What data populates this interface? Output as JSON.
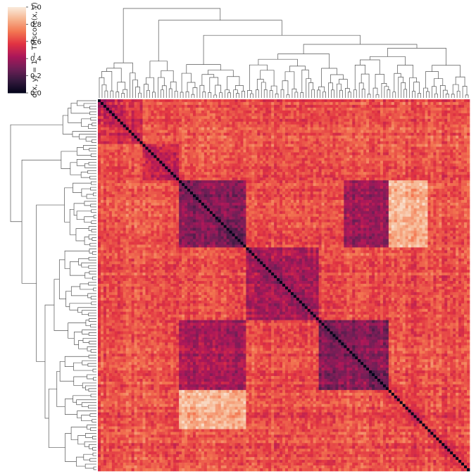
{
  "chart_data": {
    "type": "heatmap",
    "title": "",
    "layout": "clustermap with row and column dendrograms",
    "matrix_size": 133,
    "diagonal_value": 0.0,
    "value_range": [
      0.0,
      1.0
    ],
    "colormap": "rocket",
    "colormap_stops": [
      "#03051a",
      "#35193e",
      "#701f57",
      "#ad1759",
      "#e13342",
      "#f37651",
      "#f6b48f",
      "#faebdd"
    ],
    "blocks": [
      {
        "rows": [
          0,
          16
        ],
        "cols": [
          0,
          16
        ],
        "value": 0.55
      },
      {
        "rows": [
          16,
          29
        ],
        "cols": [
          16,
          29
        ],
        "value": 0.52
      },
      {
        "rows": [
          29,
          53
        ],
        "cols": [
          29,
          53
        ],
        "value": 0.34
      },
      {
        "rows": [
          53,
          79
        ],
        "cols": [
          53,
          79
        ],
        "value": 0.45
      },
      {
        "rows": [
          79,
          104
        ],
        "cols": [
          79,
          104
        ],
        "value": 0.35
      },
      {
        "rows": [
          104,
          133
        ],
        "cols": [
          104,
          133
        ],
        "value": 0.62
      }
    ],
    "background_value": 0.64,
    "highlight_bands": [
      {
        "rows": [
          29,
          53
        ],
        "cols": [
          88,
          104
        ],
        "value": 0.38
      },
      {
        "rows": [
          79,
          104
        ],
        "cols": [
          29,
          53
        ],
        "value": 0.42
      },
      {
        "rows": [
          29,
          53
        ],
        "cols": [
          104,
          118
        ],
        "value": 0.85
      },
      {
        "rows": [
          104,
          118
        ],
        "cols": [
          29,
          53
        ],
        "value": 0.85
      }
    ],
    "colorbar": {
      "label": "d(x, y) = 1 − TMscore(x, y)",
      "ticks": [
        "0.0",
        "0.2",
        "0.4",
        "0.6",
        "0.8",
        "1.0"
      ],
      "tick_values": [
        0.0,
        0.2,
        0.4,
        0.6,
        0.8,
        1.0
      ]
    },
    "grid": false,
    "legend": "colorbar top-left"
  }
}
